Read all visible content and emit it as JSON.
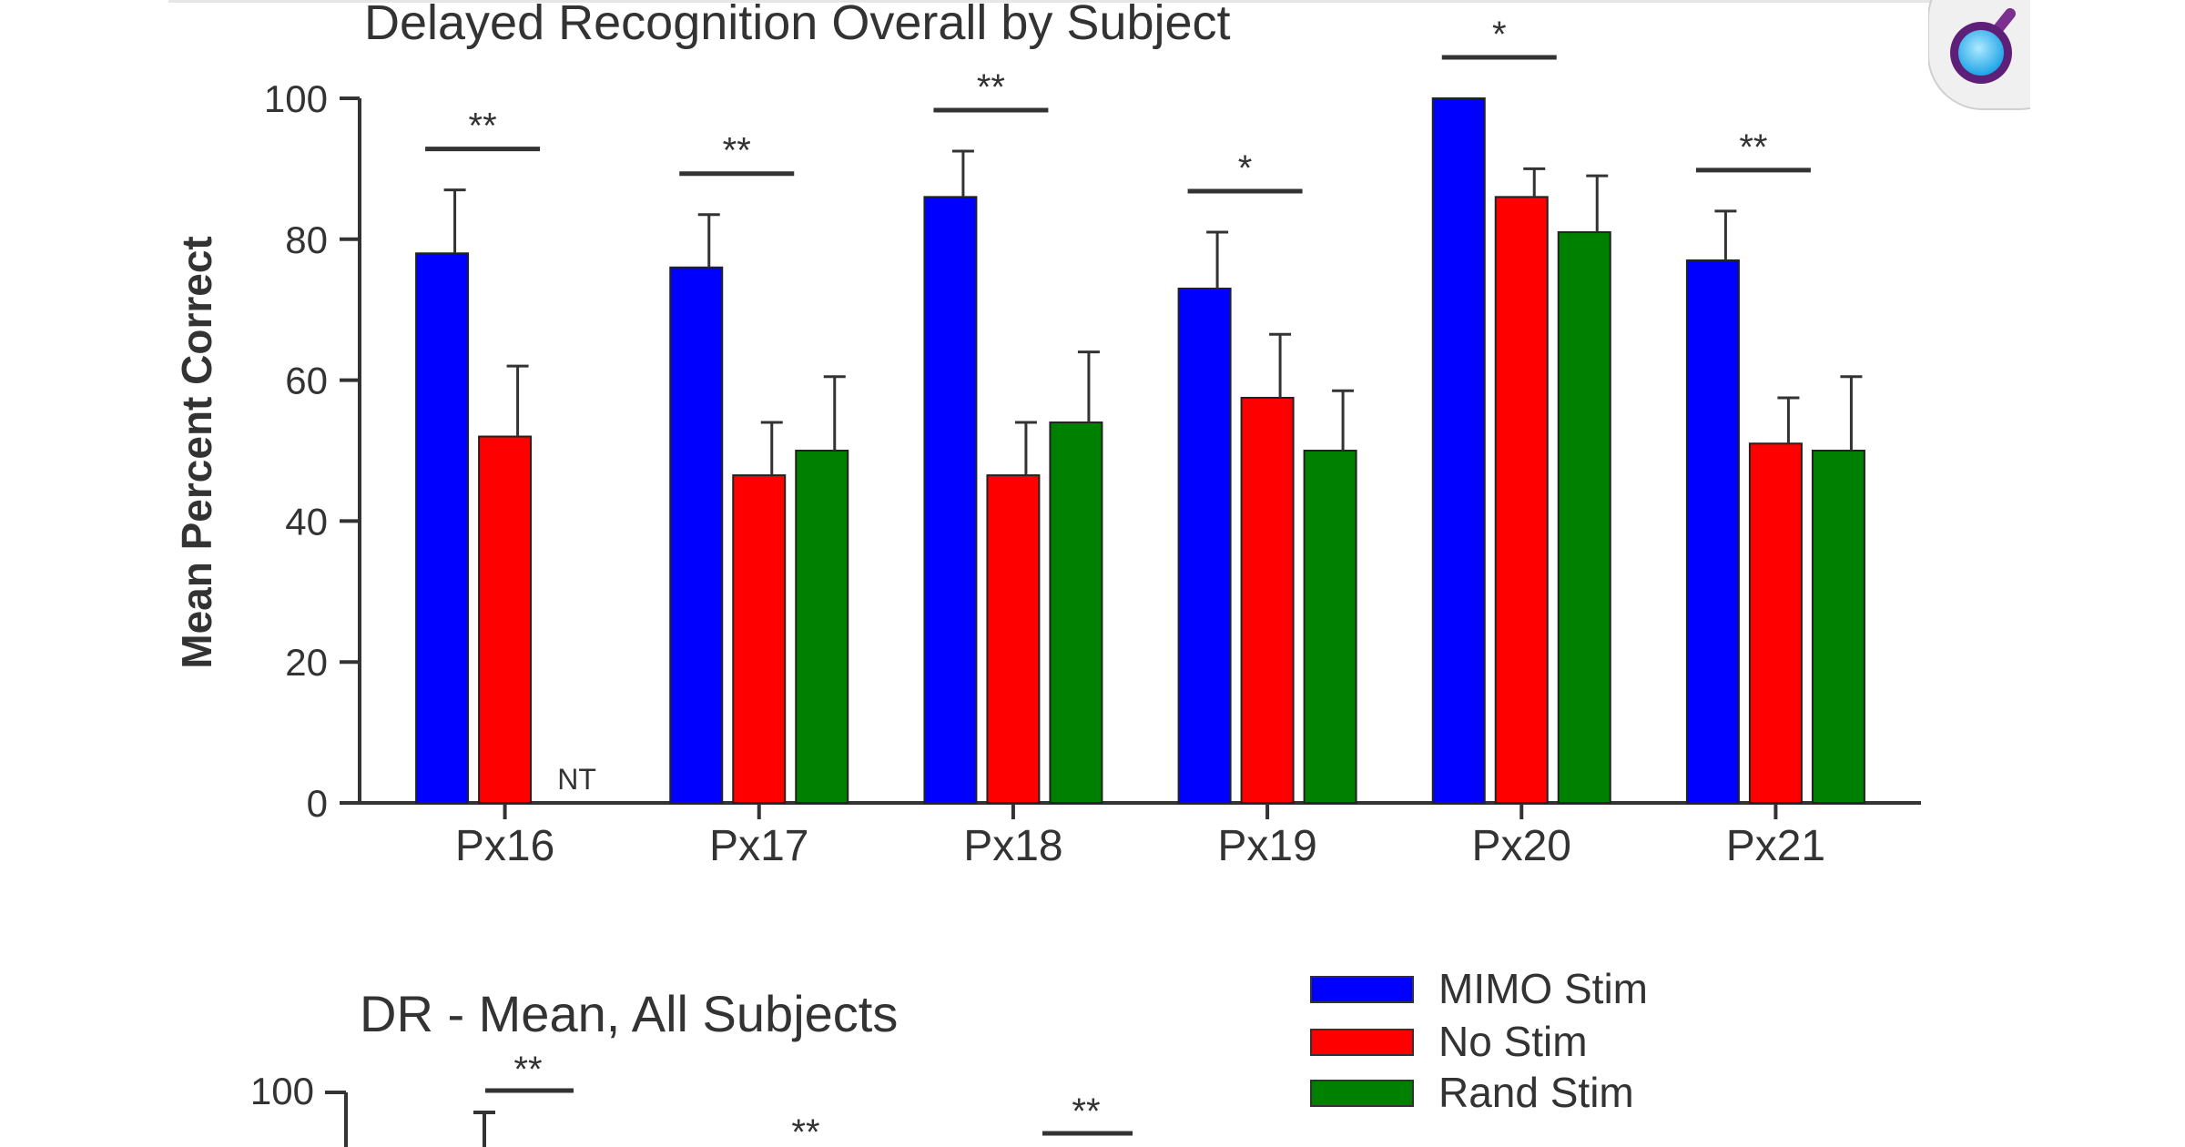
{
  "colors": {
    "mimo": "#0000ff",
    "nostim": "#ff0000",
    "rand": "#008000",
    "axis": "#333333",
    "text": "#333333"
  },
  "logo": {
    "icon": "magnifier-logo-icon"
  },
  "chart_data": [
    {
      "type": "bar",
      "title": "Delayed Recognition Overall by Subject",
      "ylabel": "Mean Percent Correct",
      "xlabel": "",
      "ylim": [
        0,
        100
      ],
      "yticks": [
        "0",
        "20",
        "40",
        "60",
        "80",
        "100"
      ],
      "categories": [
        "Px16",
        "Px17",
        "Px18",
        "Px19",
        "Px20",
        "Px21"
      ],
      "series": [
        {
          "name": "MIMO Stim",
          "values": [
            78,
            76,
            86,
            73,
            100,
            77
          ],
          "errors": [
            9,
            7.5,
            6.5,
            8,
            0,
            7
          ]
        },
        {
          "name": "No Stim",
          "values": [
            52,
            46.5,
            46.5,
            57.5,
            86,
            51
          ],
          "errors": [
            10,
            7.5,
            7.5,
            9,
            4,
            6.5
          ]
        },
        {
          "name": "Rand Stim",
          "values": [
            null,
            50,
            54,
            50,
            81,
            50
          ],
          "errors": [
            0,
            10.5,
            10,
            8.5,
            8,
            10.5
          ]
        }
      ],
      "significance": [
        {
          "category": "Px16",
          "label": "**"
        },
        {
          "category": "Px17",
          "label": "**"
        },
        {
          "category": "Px18",
          "label": "**"
        },
        {
          "category": "Px19",
          "label": "*"
        },
        {
          "category": "Px20",
          "label": "*"
        },
        {
          "category": "Px21",
          "label": "**"
        }
      ],
      "annotations": [
        {
          "category": "Px16",
          "series": "Rand Stim",
          "label": "NT"
        }
      ],
      "grid": false
    },
    {
      "type": "bar",
      "title": "DR - Mean, All Subjects",
      "ytick_visible": "100",
      "significance_labels": [
        "**",
        "**",
        "**"
      ],
      "legend": {
        "placement": "right",
        "entries": [
          "MIMO Stim",
          "No Stim",
          "Rand Stim"
        ]
      }
    }
  ]
}
